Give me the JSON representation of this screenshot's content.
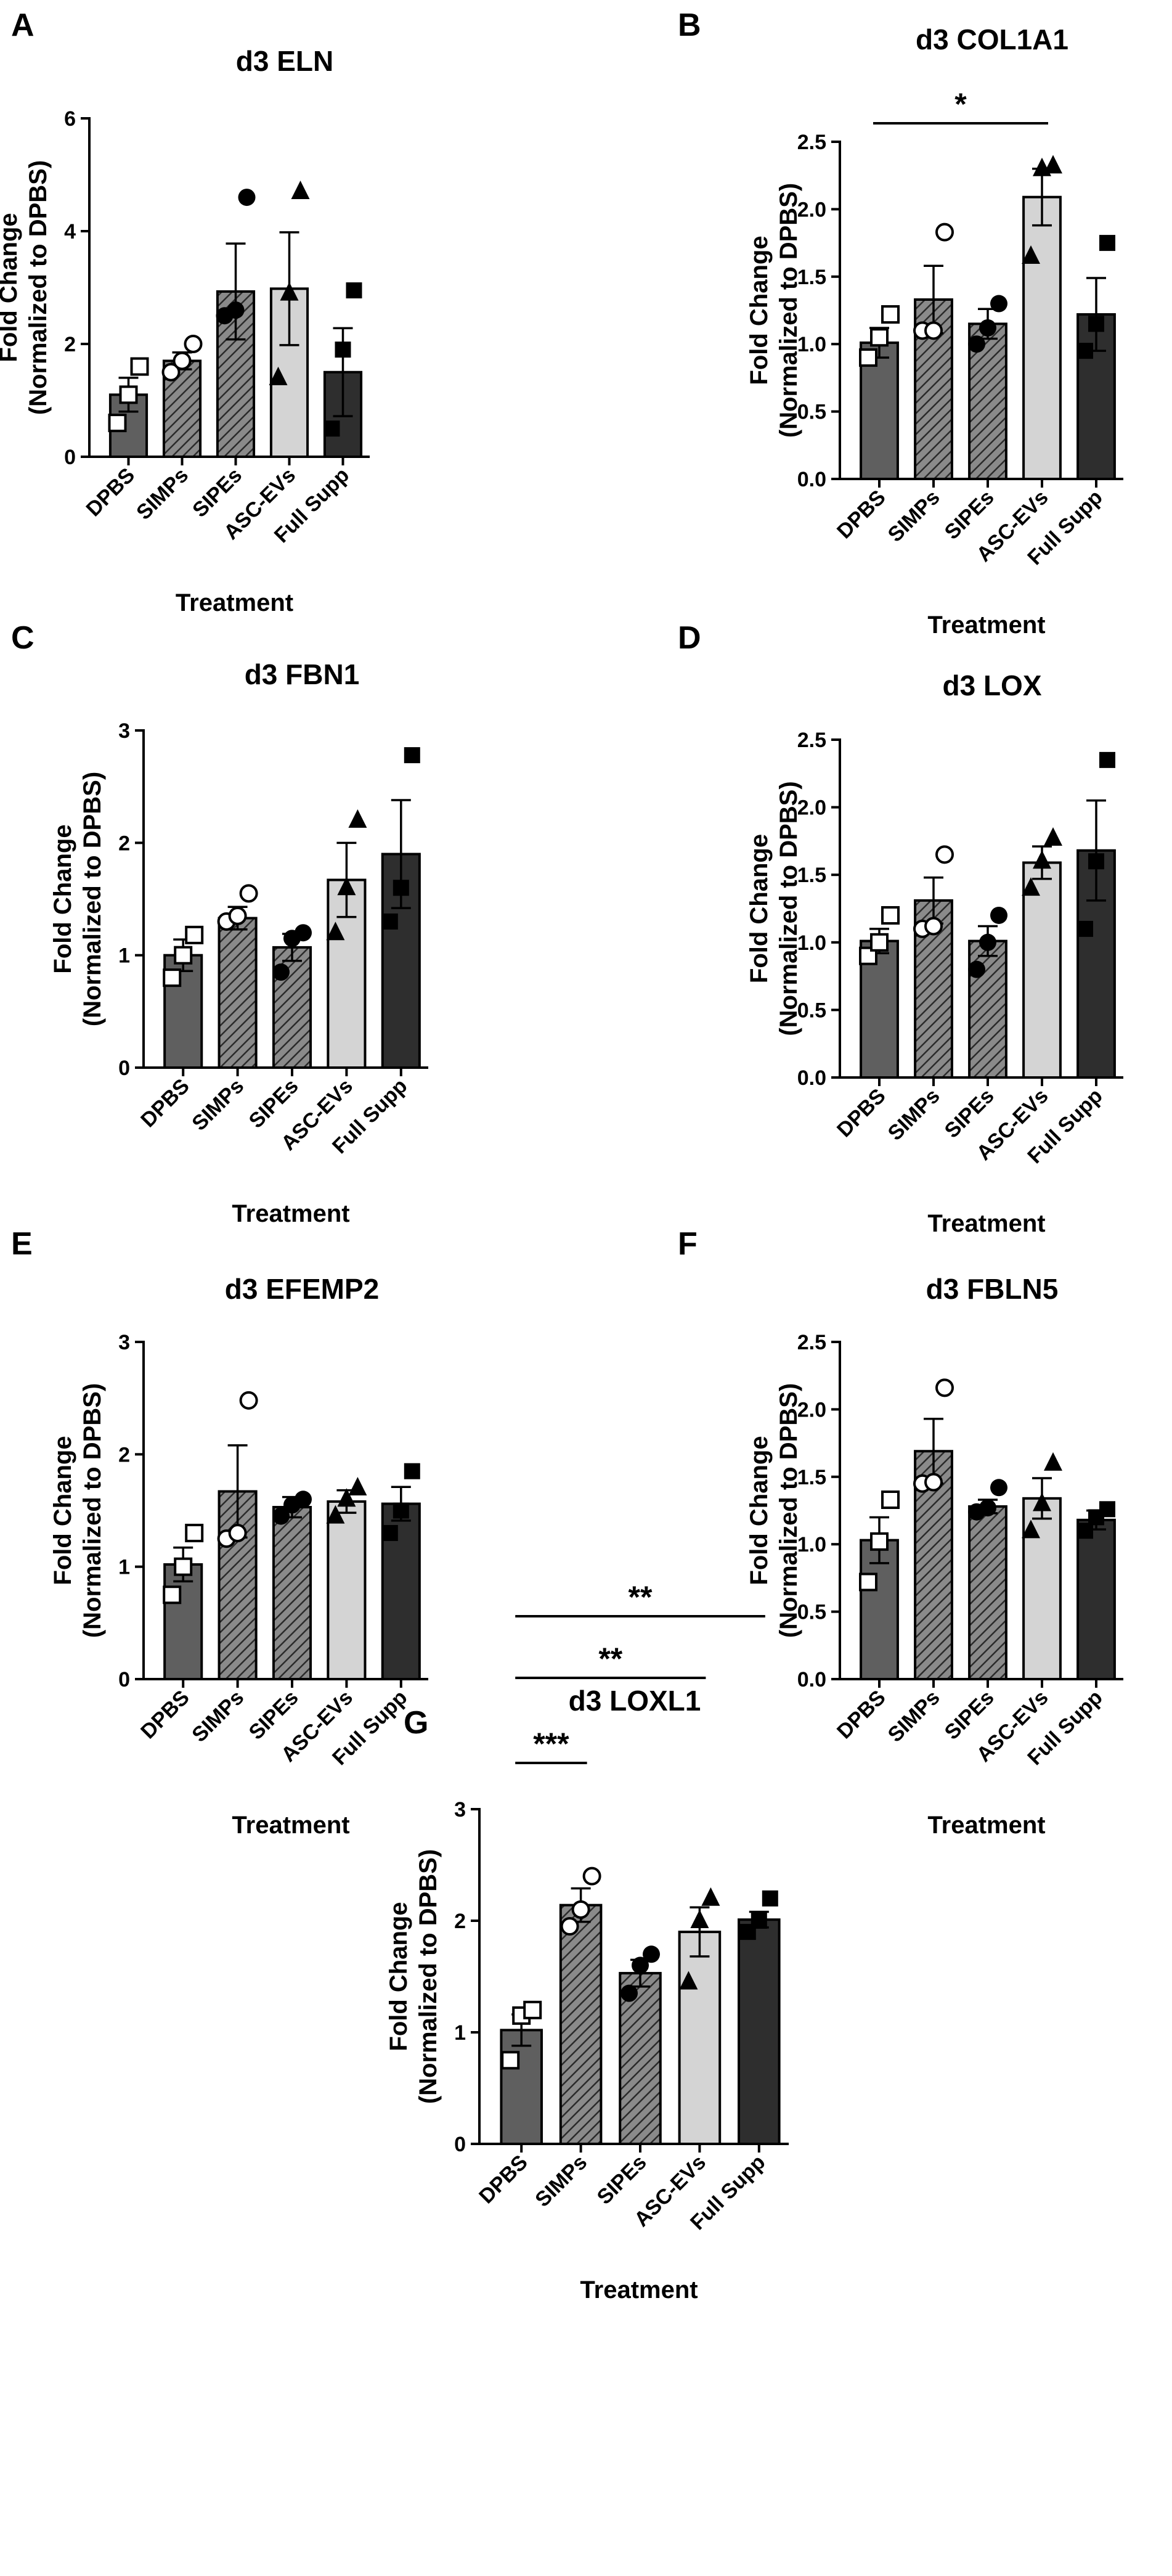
{
  "categories": [
    "DPBS",
    "SIMPs",
    "SIPEs",
    "ASC-EVs",
    "Full Supp"
  ],
  "xlabel": "Treatment",
  "ylabel_line1": "Fold Change",
  "ylabel_line2": "(Normalized to DPBS)",
  "styles": {
    "bar_fills": [
      "#5f5f5f",
      "hatch",
      "hatch",
      "#d4d4d4",
      "#2e2e2e"
    ],
    "markers": [
      "open-square",
      "open-circle",
      "filled-circle",
      "filled-triangle",
      "filled-square"
    ],
    "axis_color": "#000000"
  },
  "chart_data": [
    {
      "panel": "A",
      "type": "bar",
      "title": "d3 ELN",
      "ylim": [
        0,
        6
      ],
      "yticks": [
        "0",
        "2",
        "4",
        "6"
      ],
      "values": [
        1.1,
        1.7,
        2.93,
        2.98,
        1.5
      ],
      "sem": [
        0.3,
        0.15,
        0.85,
        1.0,
        0.78
      ],
      "points": [
        [
          0.6,
          1.1,
          1.6
        ],
        [
          1.5,
          1.7,
          2.0
        ],
        [
          2.5,
          2.6,
          4.6
        ],
        [
          1.4,
          2.9,
          4.7
        ],
        [
          0.5,
          1.9,
          2.95
        ]
      ],
      "significance": []
    },
    {
      "panel": "B",
      "type": "bar",
      "title": "d3 COL1A1",
      "ylim": [
        0,
        2.5
      ],
      "yticks": [
        "0.0",
        "0.5",
        "1.0",
        "1.5",
        "2.0",
        "2.5"
      ],
      "values": [
        1.01,
        1.33,
        1.15,
        2.09,
        1.22
      ],
      "sem": [
        0.11,
        0.25,
        0.11,
        0.21,
        0.27
      ],
      "points": [
        [
          0.9,
          1.05,
          1.22
        ],
        [
          1.1,
          1.1,
          1.83
        ],
        [
          1.0,
          1.12,
          1.3
        ],
        [
          1.65,
          2.3,
          2.32
        ],
        [
          0.95,
          1.15,
          1.75
        ]
      ],
      "significance": [
        {
          "from": 0,
          "to": 3,
          "label": "*"
        }
      ]
    },
    {
      "panel": "C",
      "type": "bar",
      "title": "d3 FBN1",
      "ylim": [
        0,
        3
      ],
      "yticks": [
        "0",
        "1",
        "2",
        "3"
      ],
      "values": [
        1.0,
        1.33,
        1.07,
        1.67,
        1.9
      ],
      "sem": [
        0.14,
        0.1,
        0.12,
        0.33,
        0.48
      ],
      "points": [
        [
          0.8,
          1.0,
          1.18
        ],
        [
          1.3,
          1.35,
          1.55
        ],
        [
          0.85,
          1.15,
          1.2
        ],
        [
          1.2,
          1.6,
          2.2
        ],
        [
          1.3,
          1.6,
          2.78
        ]
      ],
      "significance": []
    },
    {
      "panel": "D",
      "type": "bar",
      "title": "d3 LOX",
      "ylim": [
        0,
        2.5
      ],
      "yticks": [
        "0.0",
        "0.5",
        "1.0",
        "1.5",
        "2.0",
        "2.5"
      ],
      "values": [
        1.01,
        1.31,
        1.01,
        1.59,
        1.68
      ],
      "sem": [
        0.09,
        0.17,
        0.11,
        0.12,
        0.37
      ],
      "points": [
        [
          0.9,
          1.0,
          1.2
        ],
        [
          1.1,
          1.12,
          1.65
        ],
        [
          0.8,
          1.0,
          1.2
        ],
        [
          1.4,
          1.6,
          1.77
        ],
        [
          1.1,
          1.6,
          2.35
        ]
      ],
      "significance": []
    },
    {
      "panel": "E",
      "type": "bar",
      "title": "d3 EFEMP2",
      "ylim": [
        0,
        3
      ],
      "yticks": [
        "0",
        "1",
        "2",
        "3"
      ],
      "values": [
        1.02,
        1.67,
        1.53,
        1.58,
        1.56
      ],
      "sem": [
        0.15,
        0.41,
        0.09,
        0.1,
        0.15
      ],
      "points": [
        [
          0.75,
          1.0,
          1.3
        ],
        [
          1.25,
          1.3,
          2.48
        ],
        [
          1.45,
          1.55,
          1.6
        ],
        [
          1.45,
          1.6,
          1.7
        ],
        [
          1.3,
          1.5,
          1.85
        ]
      ],
      "significance": []
    },
    {
      "panel": "F",
      "type": "bar",
      "title": "d3 FBLN5",
      "ylim": [
        0,
        2.5
      ],
      "yticks": [
        "0.0",
        "0.5",
        "1.0",
        "1.5",
        "2.0",
        "2.5"
      ],
      "values": [
        1.03,
        1.69,
        1.28,
        1.34,
        1.18
      ],
      "sem": [
        0.17,
        0.24,
        0.05,
        0.15,
        0.07
      ],
      "points": [
        [
          0.72,
          1.02,
          1.33
        ],
        [
          1.45,
          1.46,
          2.16
        ],
        [
          1.24,
          1.27,
          1.42
        ],
        [
          1.1,
          1.3,
          1.6
        ],
        [
          1.1,
          1.2,
          1.26
        ]
      ],
      "significance": []
    },
    {
      "panel": "G",
      "type": "bar",
      "title": "d3 LOXL1",
      "ylim": [
        0,
        3
      ],
      "yticks": [
        "0",
        "1",
        "2",
        "3"
      ],
      "values": [
        1.02,
        2.14,
        1.53,
        1.9,
        2.01
      ],
      "sem": [
        0.14,
        0.15,
        0.12,
        0.22,
        0.07
      ],
      "points": [
        [
          0.75,
          1.15,
          1.2
        ],
        [
          1.95,
          2.1,
          2.4
        ],
        [
          1.35,
          1.6,
          1.7
        ],
        [
          1.45,
          2.0,
          2.2
        ],
        [
          1.9,
          2.0,
          2.2
        ]
      ],
      "significance": [
        {
          "from": 0,
          "to": 1,
          "label": "***"
        },
        {
          "from": 0,
          "to": 3,
          "label": "**"
        },
        {
          "from": 0,
          "to": 4,
          "label": "**"
        }
      ]
    }
  ]
}
